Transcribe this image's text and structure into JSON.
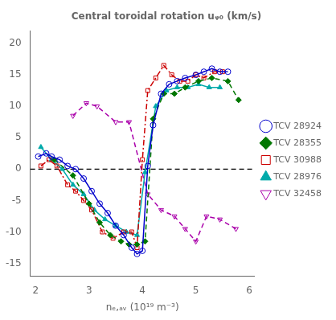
{
  "chart_data": {
    "type": "line",
    "title": "Central toroidal rotation uᵩ₀ (km/s)",
    "x_label": "nₑ,ₐᵥ (10¹⁹ m⁻³)",
    "xlim": [
      1.9,
      6.1
    ],
    "xticks": [
      2,
      3,
      4,
      5,
      6
    ],
    "ylim": [
      -17,
      22
    ],
    "yticks": [
      -15,
      -10,
      -5,
      0,
      5,
      10,
      15,
      20
    ],
    "grid": false,
    "legend": "right",
    "hlines": [
      0
    ],
    "series": [
      {
        "name": "TCV 28924",
        "color": "#0000cc",
        "line_style": "solid",
        "marker": "circle_open",
        "x": [
          2.05,
          2.2,
          2.3,
          2.45,
          2.6,
          2.75,
          2.9,
          3.05,
          3.2,
          3.35,
          3.5,
          3.65,
          3.8,
          3.9,
          4.0,
          4.1,
          4.2,
          4.35,
          4.5,
          4.65,
          4.8,
          5.0,
          5.15,
          5.3,
          5.45,
          5.6
        ],
        "values": [
          2.0,
          2.5,
          2.0,
          1.5,
          0.5,
          0.0,
          -1.5,
          -3.5,
          -5.5,
          -7.0,
          -9.0,
          -10.5,
          -12.5,
          -13.5,
          -13.0,
          0.5,
          7.0,
          12.0,
          13.5,
          14.0,
          14.5,
          15.0,
          15.5,
          16.0,
          15.5,
          15.5
        ]
      },
      {
        "name": "TCV 28355",
        "color": "#007700",
        "line_style": "dashed",
        "marker": "diamond",
        "x": [
          2.35,
          2.7,
          3.0,
          3.2,
          3.4,
          3.6,
          3.75,
          3.9,
          4.05,
          4.2,
          4.4,
          4.6,
          4.8,
          5.05,
          5.3,
          5.6,
          5.8
        ],
        "values": [
          1.5,
          -1.0,
          -5.5,
          -8.5,
          -10.5,
          -11.5,
          -12.0,
          -12.0,
          -11.5,
          8.0,
          12.0,
          12.0,
          13.0,
          14.0,
          14.5,
          14.0,
          11.0
        ]
      },
      {
        "name": "TCV 30988",
        "color": "#cc0000",
        "line_style": "dashdot",
        "marker": "square_open",
        "x": [
          2.1,
          2.25,
          2.4,
          2.6,
          2.75,
          2.9,
          3.05,
          3.25,
          3.45,
          3.65,
          3.8,
          3.9,
          4.0,
          4.1,
          4.25,
          4.4,
          4.55,
          4.7,
          4.85,
          5.0,
          5.15,
          5.35,
          5.5
        ],
        "values": [
          0.5,
          1.5,
          0.5,
          -2.5,
          -3.5,
          -5.0,
          -6.5,
          -10.0,
          -11.0,
          -10.0,
          -10.0,
          -12.5,
          1.5,
          12.5,
          14.5,
          16.5,
          15.0,
          14.0,
          14.0,
          15.0,
          14.5,
          15.5,
          15.5
        ]
      },
      {
        "name": "TCV 28976",
        "color": "#00aaaa",
        "line_style": "solid",
        "marker": "triangle",
        "x": [
          2.1,
          2.3,
          2.5,
          2.7,
          2.9,
          3.1,
          3.3,
          3.5,
          3.7,
          3.9,
          4.05,
          4.25,
          4.45,
          4.65,
          4.85,
          5.05,
          5.25,
          5.45
        ],
        "values": [
          3.5,
          1.5,
          0.0,
          -2.5,
          -4.0,
          -6.5,
          -8.0,
          -9.0,
          -10.0,
          -10.5,
          -0.5,
          10.0,
          12.5,
          13.0,
          13.0,
          13.5,
          13.0,
          13.0
        ]
      },
      {
        "name": "TCV 32458",
        "color": "#aa00aa",
        "line_style": "dashed",
        "marker": "triangle_down_open",
        "x": [
          2.7,
          2.95,
          3.15,
          3.5,
          3.75,
          4.1,
          4.35,
          4.6,
          4.8,
          5.0,
          5.2,
          5.45,
          5.75
        ],
        "values": [
          8.5,
          10.5,
          10.0,
          7.5,
          7.5,
          -4.0,
          -6.5,
          -7.5,
          -9.5,
          -11.5,
          -7.5,
          -8.0,
          -9.5
        ]
      }
    ]
  }
}
